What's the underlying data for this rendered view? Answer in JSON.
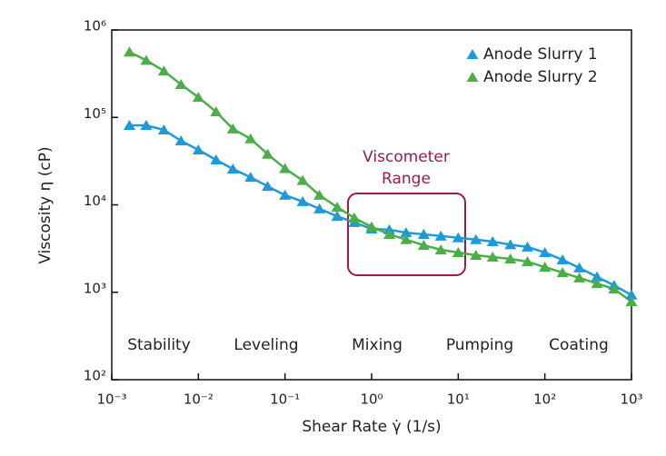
{
  "chart_data": {
    "type": "line",
    "x_label": "Shear Rate γ̇ (1/s)",
    "y_label": "Viscosity η (cP)",
    "xscale": "log",
    "yscale": "log",
    "xlim": [
      0.001,
      1000
    ],
    "xticks": [
      {
        "value": 0.001,
        "label": "10⁻³"
      },
      {
        "value": 0.01,
        "label": "10⁻²"
      },
      {
        "value": 0.1,
        "label": "10⁻¹"
      },
      {
        "value": 1,
        "label": "10⁰"
      },
      {
        "value": 10,
        "label": "10¹"
      },
      {
        "value": 100,
        "label": "10²"
      },
      {
        "value": 1000,
        "label": "10³"
      }
    ],
    "ylim": [
      100,
      1000000
    ],
    "yticks": [
      {
        "value": 100,
        "label": "10²"
      },
      {
        "value": 1000,
        "label": "10³"
      },
      {
        "value": 10000,
        "label": "10⁴"
      },
      {
        "value": 100000,
        "label": "10⁵"
      },
      {
        "value": 1000000,
        "label": "10⁶"
      }
    ],
    "legend": "upper right",
    "x": [
      0.0016,
      0.0025,
      0.004,
      0.0063,
      0.01,
      0.016,
      0.025,
      0.04,
      0.063,
      0.1,
      0.16,
      0.25,
      0.4,
      0.63,
      1,
      1.6,
      2.5,
      4,
      6.3,
      10,
      16,
      25,
      40,
      63,
      100,
      160,
      250,
      400,
      630,
      1000
    ],
    "series": [
      {
        "name": "Anode Slurry 1",
        "color": "#1f9ad6",
        "values": [
          81000,
          81000,
          72000,
          54000,
          42500,
          32700,
          25700,
          20700,
          16300,
          12900,
          10900,
          9000,
          7400,
          6300,
          5300,
          5200,
          4800,
          4600,
          4400,
          4200,
          4000,
          3800,
          3500,
          3300,
          2850,
          2350,
          1900,
          1500,
          1200,
          930
        ]
      },
      {
        "name": "Anode Slurry 2",
        "color": "#4cae48",
        "values": [
          560000,
          450000,
          340000,
          238000,
          170000,
          116000,
          74000,
          57000,
          38000,
          26000,
          19000,
          12900,
          9400,
          7100,
          5600,
          4600,
          4000,
          3450,
          3060,
          2850,
          2650,
          2530,
          2410,
          2240,
          1940,
          1680,
          1460,
          1260,
          1090,
          780
        ]
      }
    ],
    "annotations": [
      "Stability",
      "Leveling",
      "Mixing",
      "Pumping",
      "Coating"
    ],
    "range_label": [
      "Viscometer",
      "Range"
    ]
  }
}
